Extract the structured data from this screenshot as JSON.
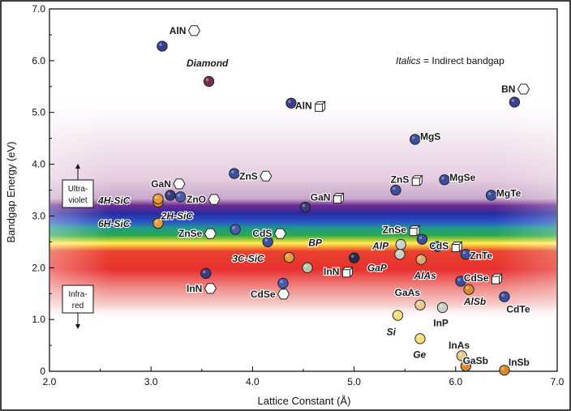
{
  "chart_data": {
    "type": "scatter",
    "xlabel": "Lattice Constant (Å)",
    "ylabel": "Bandgap Energy (eV)",
    "xlim": [
      2.0,
      7.0
    ],
    "ylim": [
      0,
      7.0
    ],
    "xticks": [
      "2.0",
      "3.0",
      "4.0",
      "5.0",
      "6.0",
      "7.0"
    ],
    "yticks": [
      "0",
      "1.0",
      "2.0",
      "3.0",
      "4.0",
      "5.0",
      "6.0",
      "7.0"
    ],
    "grid": false,
    "note": {
      "italic_word": "Italics",
      "rest": " = Indirect bandgap"
    },
    "band_labels": {
      "uv": [
        "Ultra-",
        "violet"
      ],
      "ir": [
        "Infra-",
        "red"
      ]
    },
    "points": [
      {
        "label": "AlN",
        "x": 3.11,
        "y": 6.28,
        "color": "#3c3f8f",
        "lx": 3.18,
        "ly": 6.58,
        "italic": false,
        "sym": "hex"
      },
      {
        "label": "Diamond",
        "x": 3.57,
        "y": 5.6,
        "color": "#7a2a4e",
        "lx": 3.35,
        "ly": 5.95,
        "italic": true,
        "sym": ""
      },
      {
        "label": "AlN",
        "x": 4.38,
        "y": 5.18,
        "color": "#3c3f8f",
        "lx": 4.42,
        "ly": 5.13,
        "italic": false,
        "sym": "cube"
      },
      {
        "label": "BN",
        "x": 6.58,
        "y": 5.2,
        "color": "#3c3f8f",
        "lx": 6.45,
        "ly": 5.45,
        "italic": false,
        "sym": "hex"
      },
      {
        "label": "MgS",
        "x": 5.6,
        "y": 4.48,
        "color": "#3c4f9f",
        "lx": 5.65,
        "ly": 4.53,
        "italic": false,
        "sym": ""
      },
      {
        "label": "ZnS",
        "x": 3.82,
        "y": 3.82,
        "color": "#3c4f9f",
        "lx": 3.87,
        "ly": 3.77,
        "italic": false,
        "sym": "hex"
      },
      {
        "label": "ZnS",
        "x": 5.41,
        "y": 3.5,
        "color": "#3c4f9f",
        "lx": 5.36,
        "ly": 3.7,
        "italic": false,
        "sym": "cube"
      },
      {
        "label": "MgSe",
        "x": 5.89,
        "y": 3.7,
        "color": "#3c4f9f",
        "lx": 5.94,
        "ly": 3.74,
        "italic": false,
        "sym": ""
      },
      {
        "label": "MgTe",
        "x": 6.35,
        "y": 3.4,
        "color": "#3c4f9f",
        "lx": 6.4,
        "ly": 3.44,
        "italic": false,
        "sym": ""
      },
      {
        "label": "GaN",
        "x": 3.19,
        "y": 3.4,
        "color": "#3b3a7a",
        "lx": 3.0,
        "ly": 3.62,
        "italic": false,
        "sym": "hex"
      },
      {
        "label": "ZnO",
        "x": 3.29,
        "y": 3.37,
        "color": "#4a5ab0",
        "lx": 3.35,
        "ly": 3.32,
        "italic": false,
        "sym": "hex"
      },
      {
        "label": "GaN",
        "x": 4.52,
        "y": 3.17,
        "color": "#3b3a7a",
        "lx": 4.57,
        "ly": 3.36,
        "italic": false,
        "sym": "cube"
      },
      {
        "label": "4H-SiC",
        "x": 3.07,
        "y": 3.27,
        "color": "#d78a32",
        "lx": 2.48,
        "ly": 3.3,
        "italic": true,
        "sym": ""
      },
      {
        "label": "2H-SiC",
        "x": 3.07,
        "y": 3.33,
        "color": "#e29b3d",
        "lx": 3.1,
        "ly": 3.0,
        "italic": true,
        "sym": ""
      },
      {
        "label": "6H-SiC",
        "x": 3.07,
        "y": 2.86,
        "color": "#e29b3d",
        "lx": 2.48,
        "ly": 2.85,
        "italic": true,
        "sym": ""
      },
      {
        "label": "ZnSe",
        "x": 3.83,
        "y": 2.74,
        "color": "#4a5ab0",
        "lx": 3.27,
        "ly": 2.66,
        "italic": false,
        "sym": "hex"
      },
      {
        "label": "CdS",
        "x": 4.15,
        "y": 2.5,
        "color": "#3c4f9f",
        "lx": 4.0,
        "ly": 2.66,
        "italic": false,
        "sym": "hex"
      },
      {
        "label": "CdS",
        "x": 5.82,
        "y": 2.41,
        "color": "#3c4f9f",
        "lx": 5.74,
        "ly": 2.42,
        "italic": false,
        "sym": "cube"
      },
      {
        "label": "ZnSe",
        "x": 5.67,
        "y": 2.55,
        "color": "#3c4f9f",
        "lx": 5.28,
        "ly": 2.73,
        "italic": false,
        "sym": "cube"
      },
      {
        "label": "BP",
        "x": 4.54,
        "y": 2.0,
        "color": "#b8c4aa",
        "lx": 4.55,
        "ly": 2.48,
        "italic": true,
        "sym": ""
      },
      {
        "label": "AlP",
        "x": 5.46,
        "y": 2.45,
        "color": "#c8d0c8",
        "lx": 5.18,
        "ly": 2.42,
        "italic": true,
        "sym": ""
      },
      {
        "label": "GaP",
        "x": 5.45,
        "y": 2.26,
        "color": "#c8d0c8",
        "lx": 5.13,
        "ly": 2.0,
        "italic": true,
        "sym": ""
      },
      {
        "label": "AlAs",
        "x": 5.66,
        "y": 2.16,
        "color": "#e0a868",
        "lx": 5.59,
        "ly": 1.85,
        "italic": true,
        "sym": ""
      },
      {
        "label": "3C-SiC",
        "x": 4.36,
        "y": 2.2,
        "color": "#e29b3d",
        "lx": 3.8,
        "ly": 2.18,
        "italic": true,
        "sym": ""
      },
      {
        "label": "InN",
        "x": 5.0,
        "y": 2.19,
        "color": "#2a2a50",
        "lx": 4.7,
        "ly": 1.93,
        "italic": false,
        "sym": "cube"
      },
      {
        "label": "ZnTe",
        "x": 6.1,
        "y": 2.26,
        "color": "#3c4f9f",
        "lx": 6.14,
        "ly": 2.23,
        "italic": false,
        "sym": ""
      },
      {
        "label": "InN",
        "x": 3.54,
        "y": 1.89,
        "color": "#3b3a7a",
        "lx": 3.35,
        "ly": 1.6,
        "italic": false,
        "sym": "hex"
      },
      {
        "label": "CdSe",
        "x": 4.3,
        "y": 1.7,
        "color": "#4a5ab0",
        "lx": 3.98,
        "ly": 1.49,
        "italic": false,
        "sym": "hex"
      },
      {
        "label": "CdSe",
        "x": 6.05,
        "y": 1.74,
        "color": "#3c4f9f",
        "lx": 6.08,
        "ly": 1.8,
        "italic": false,
        "sym": "cube"
      },
      {
        "label": "AlSb",
        "x": 6.13,
        "y": 1.58,
        "color": "#d78a32",
        "lx": 6.08,
        "ly": 1.35,
        "italic": true,
        "sym": ""
      },
      {
        "label": "CdTe",
        "x": 6.48,
        "y": 1.44,
        "color": "#3c4f9f",
        "lx": 6.5,
        "ly": 1.2,
        "italic": false,
        "sym": ""
      },
      {
        "label": "GaAs",
        "x": 5.65,
        "y": 1.28,
        "color": "#e8c890",
        "lx": 5.4,
        "ly": 1.52,
        "italic": false,
        "sym": ""
      },
      {
        "label": "InP",
        "x": 5.87,
        "y": 1.23,
        "color": "#c8d0c8",
        "lx": 5.78,
        "ly": 0.93,
        "italic": false,
        "sym": ""
      },
      {
        "label": "Si",
        "x": 5.43,
        "y": 1.08,
        "color": "#f4e07a",
        "lx": 5.32,
        "ly": 0.76,
        "italic": true,
        "sym": ""
      },
      {
        "label": "Ge",
        "x": 5.65,
        "y": 0.63,
        "color": "#f4e07a",
        "lx": 5.58,
        "ly": 0.32,
        "italic": true,
        "sym": ""
      },
      {
        "label": "InAs",
        "x": 6.06,
        "y": 0.3,
        "color": "#e8c890",
        "lx": 5.93,
        "ly": 0.5,
        "italic": false,
        "sym": ""
      },
      {
        "label": "GaSb",
        "x": 6.1,
        "y": 0.1,
        "color": "#d78a32",
        "lx": 6.07,
        "ly": 0.2,
        "italic": false,
        "sym": ""
      },
      {
        "label": "InSb",
        "x": 6.48,
        "y": 0.02,
        "color": "#d78a32",
        "lx": 6.52,
        "ly": 0.17,
        "italic": false,
        "sym": ""
      }
    ]
  }
}
